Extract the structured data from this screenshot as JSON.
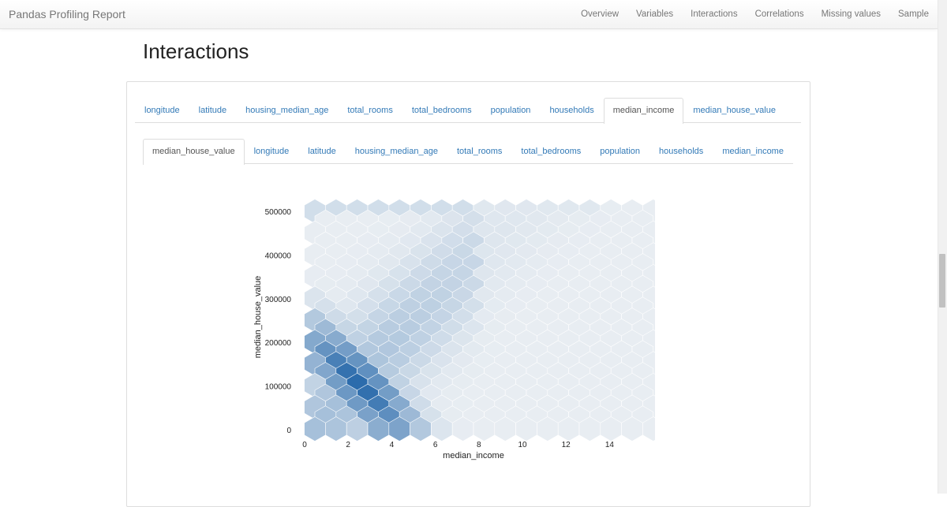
{
  "navbar": {
    "brand": "Pandas Profiling Report",
    "links": [
      "Overview",
      "Variables",
      "Interactions",
      "Correlations",
      "Missing values",
      "Sample"
    ]
  },
  "section": {
    "title": "Interactions"
  },
  "tabs_x": {
    "items": [
      "longitude",
      "latitude",
      "housing_median_age",
      "total_rooms",
      "total_bedrooms",
      "population",
      "households",
      "median_income",
      "median_house_value"
    ],
    "active": "median_income"
  },
  "tabs_y": {
    "items": [
      "median_house_value",
      "longitude",
      "latitude",
      "housing_median_age",
      "total_rooms",
      "total_bedrooms",
      "population",
      "households",
      "median_income"
    ],
    "active": "median_house_value"
  },
  "colors": {
    "hex_base": "#e6ebf0",
    "hex_dark": "#2f6fae",
    "link": "#337ab7"
  },
  "chart_data": {
    "type": "hexbin",
    "xlabel": "median_income",
    "ylabel": "median_house_value",
    "xlim": [
      0,
      15.5
    ],
    "ylim": [
      0,
      510000
    ],
    "xticks": [
      "0",
      "2",
      "4",
      "6",
      "8",
      "10",
      "12",
      "14"
    ],
    "yticks": [
      "0",
      "100000",
      "200000",
      "300000",
      "400000",
      "500000"
    ],
    "density_peak": {
      "x": 2.5,
      "y": 100000
    },
    "grid": false
  }
}
